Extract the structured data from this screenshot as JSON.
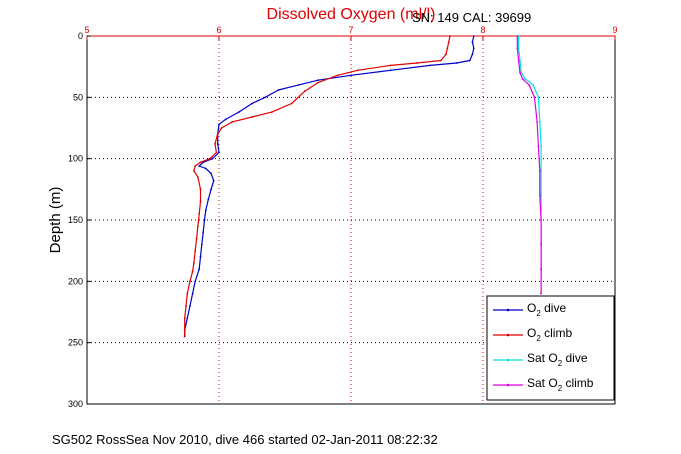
{
  "colors": {
    "axis_top": "#e00000",
    "title": "#e00000",
    "o2_dive": "#0000cc",
    "o2_climb": "#e00000",
    "sat_dive": "#00e0e0",
    "sat_climb": "#e000e0"
  },
  "footer": "SG502 RossSea Nov 2010, dive 466 started 02-Jan-2011 08:22:32",
  "chart_data": {
    "type": "line",
    "title": "Dissolved Oxygen (ml/l)",
    "subtitle": "SN: 149  CAL: 39699",
    "ylabel": "Depth (m)",
    "xlabel": "",
    "xlim": [
      5,
      9
    ],
    "ylim": [
      0,
      300
    ],
    "y_reversed": true,
    "x_axis_position": "top",
    "grid": true,
    "xticks": [
      "5",
      "6",
      "7",
      "8",
      "9"
    ],
    "yticks": [
      "0",
      "50",
      "100",
      "150",
      "200",
      "250",
      "300"
    ],
    "legend_placement": "bottom-right",
    "series": [
      {
        "name_main": "O",
        "name_sub": "2",
        "name_rest": " dive",
        "color": "#0000cc",
        "points": [
          [
            7.93,
            0
          ],
          [
            7.92,
            5
          ],
          [
            7.93,
            10
          ],
          [
            7.92,
            15
          ],
          [
            7.9,
            20
          ],
          [
            7.8,
            22
          ],
          [
            7.6,
            24
          ],
          [
            7.3,
            28
          ],
          [
            7.0,
            32
          ],
          [
            6.75,
            36
          ],
          [
            6.6,
            40
          ],
          [
            6.45,
            44
          ],
          [
            6.35,
            50
          ],
          [
            6.25,
            55
          ],
          [
            6.15,
            62
          ],
          [
            6.05,
            68
          ],
          [
            6.0,
            72
          ],
          [
            5.99,
            80
          ],
          [
            5.99,
            88
          ],
          [
            6.0,
            95
          ],
          [
            5.95,
            100
          ],
          [
            5.88,
            103
          ],
          [
            5.85,
            106
          ],
          [
            5.9,
            108
          ],
          [
            5.94,
            112
          ],
          [
            5.96,
            118
          ],
          [
            5.94,
            125
          ],
          [
            5.92,
            133
          ],
          [
            5.9,
            142
          ],
          [
            5.89,
            150
          ],
          [
            5.88,
            160
          ],
          [
            5.87,
            170
          ],
          [
            5.86,
            180
          ],
          [
            5.85,
            190
          ],
          [
            5.82,
            200
          ],
          [
            5.8,
            210
          ],
          [
            5.78,
            220
          ],
          [
            5.76,
            230
          ],
          [
            5.74,
            240
          ],
          [
            5.74,
            245
          ]
        ]
      },
      {
        "name_main": "O",
        "name_sub": "2",
        "name_rest": " climb",
        "color": "#e00000",
        "points": [
          [
            7.75,
            0
          ],
          [
            7.74,
            5
          ],
          [
            7.73,
            10
          ],
          [
            7.72,
            15
          ],
          [
            7.68,
            20
          ],
          [
            7.5,
            22
          ],
          [
            7.3,
            24
          ],
          [
            7.05,
            28
          ],
          [
            6.9,
            32
          ],
          [
            6.75,
            38
          ],
          [
            6.65,
            45
          ],
          [
            6.55,
            55
          ],
          [
            6.4,
            62
          ],
          [
            6.25,
            66
          ],
          [
            6.1,
            70
          ],
          [
            6.02,
            75
          ],
          [
            5.99,
            80
          ],
          [
            5.97,
            88
          ],
          [
            5.98,
            95
          ],
          [
            5.93,
            100
          ],
          [
            5.86,
            103
          ],
          [
            5.82,
            106
          ],
          [
            5.81,
            110
          ],
          [
            5.84,
            115
          ],
          [
            5.86,
            125
          ],
          [
            5.86,
            135
          ],
          [
            5.85,
            145
          ],
          [
            5.84,
            155
          ],
          [
            5.83,
            165
          ],
          [
            5.82,
            175
          ],
          [
            5.81,
            185
          ],
          [
            5.8,
            192
          ],
          [
            5.78,
            200
          ],
          [
            5.76,
            210
          ],
          [
            5.75,
            220
          ],
          [
            5.74,
            230
          ],
          [
            5.74,
            240
          ],
          [
            5.74,
            245
          ]
        ]
      },
      {
        "name_main": "Sat O",
        "name_sub": "2",
        "name_rest": " dive",
        "color": "#00e0e0",
        "points": [
          [
            8.27,
            0
          ],
          [
            8.27,
            10
          ],
          [
            8.28,
            20
          ],
          [
            8.29,
            30
          ],
          [
            8.32,
            35
          ],
          [
            8.38,
            40
          ],
          [
            8.42,
            50
          ],
          [
            8.43,
            70
          ],
          [
            8.44,
            90
          ],
          [
            8.44,
            110
          ],
          [
            8.44,
            130
          ],
          [
            8.44,
            150
          ],
          [
            8.44,
            170
          ],
          [
            8.44,
            190
          ],
          [
            8.44,
            210
          ]
        ]
      },
      {
        "name_main": "Sat O",
        "name_sub": "2",
        "name_rest": " climb",
        "color": "#e000e0",
        "points": [
          [
            8.26,
            0
          ],
          [
            8.26,
            10
          ],
          [
            8.27,
            20
          ],
          [
            8.28,
            30
          ],
          [
            8.3,
            35
          ],
          [
            8.35,
            40
          ],
          [
            8.39,
            50
          ],
          [
            8.41,
            70
          ],
          [
            8.42,
            90
          ],
          [
            8.43,
            110
          ],
          [
            8.43,
            130
          ],
          [
            8.44,
            150
          ],
          [
            8.44,
            170
          ],
          [
            8.44,
            190
          ],
          [
            8.44,
            210
          ]
        ]
      }
    ]
  }
}
